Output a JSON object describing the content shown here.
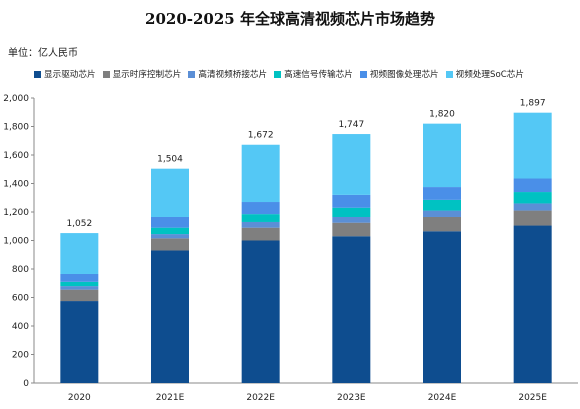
{
  "title": "2020-2025 年全球高清视频芯片市场趋势",
  "unit_label": "单位：亿人民币",
  "chart_data": {
    "type": "bar",
    "stacked": true,
    "categories": [
      "2020",
      "2021E",
      "2022E",
      "2023E",
      "2024E",
      "2025E"
    ],
    "ylim": [
      0,
      2000
    ],
    "yticks": [
      0,
      200,
      400,
      600,
      800,
      1000,
      1200,
      1400,
      1600,
      1800,
      2000
    ],
    "ytick_labels": [
      "0",
      "200",
      "400",
      "600",
      "800",
      "1,000",
      "1,200",
      "1,400",
      "1,600",
      "1,800",
      "2,000"
    ],
    "totals": [
      1052,
      1504,
      1672,
      1747,
      1820,
      1897
    ],
    "total_labels": [
      "1,052",
      "1,504",
      "1,672",
      "1,747",
      "1,820",
      "1,897"
    ],
    "grid": false,
    "legend_position": "top",
    "series": [
      {
        "name": "显示驱动芯片",
        "color": "#0e4d8f",
        "values": [
          575,
          930,
          1000,
          1030,
          1065,
          1105
        ]
      },
      {
        "name": "显示时序控制芯片",
        "color": "#7f7f7f",
        "values": [
          80,
          85,
          90,
          95,
          100,
          105
        ]
      },
      {
        "name": "高清视频桥接芯片",
        "color": "#5b8fd6",
        "values": [
          25,
          30,
          40,
          40,
          45,
          50
        ]
      },
      {
        "name": "高速信号传输芯片",
        "color": "#00c2c2",
        "values": [
          30,
          45,
          55,
          65,
          75,
          80
        ]
      },
      {
        "name": "视频图像处理芯片",
        "color": "#4a8fe8",
        "values": [
          55,
          75,
          85,
          90,
          90,
          95
        ]
      },
      {
        "name": "视频处理SoC芯片",
        "color": "#54c8f5",
        "values": [
          287,
          339,
          402,
          427,
          445,
          462
        ]
      }
    ]
  }
}
